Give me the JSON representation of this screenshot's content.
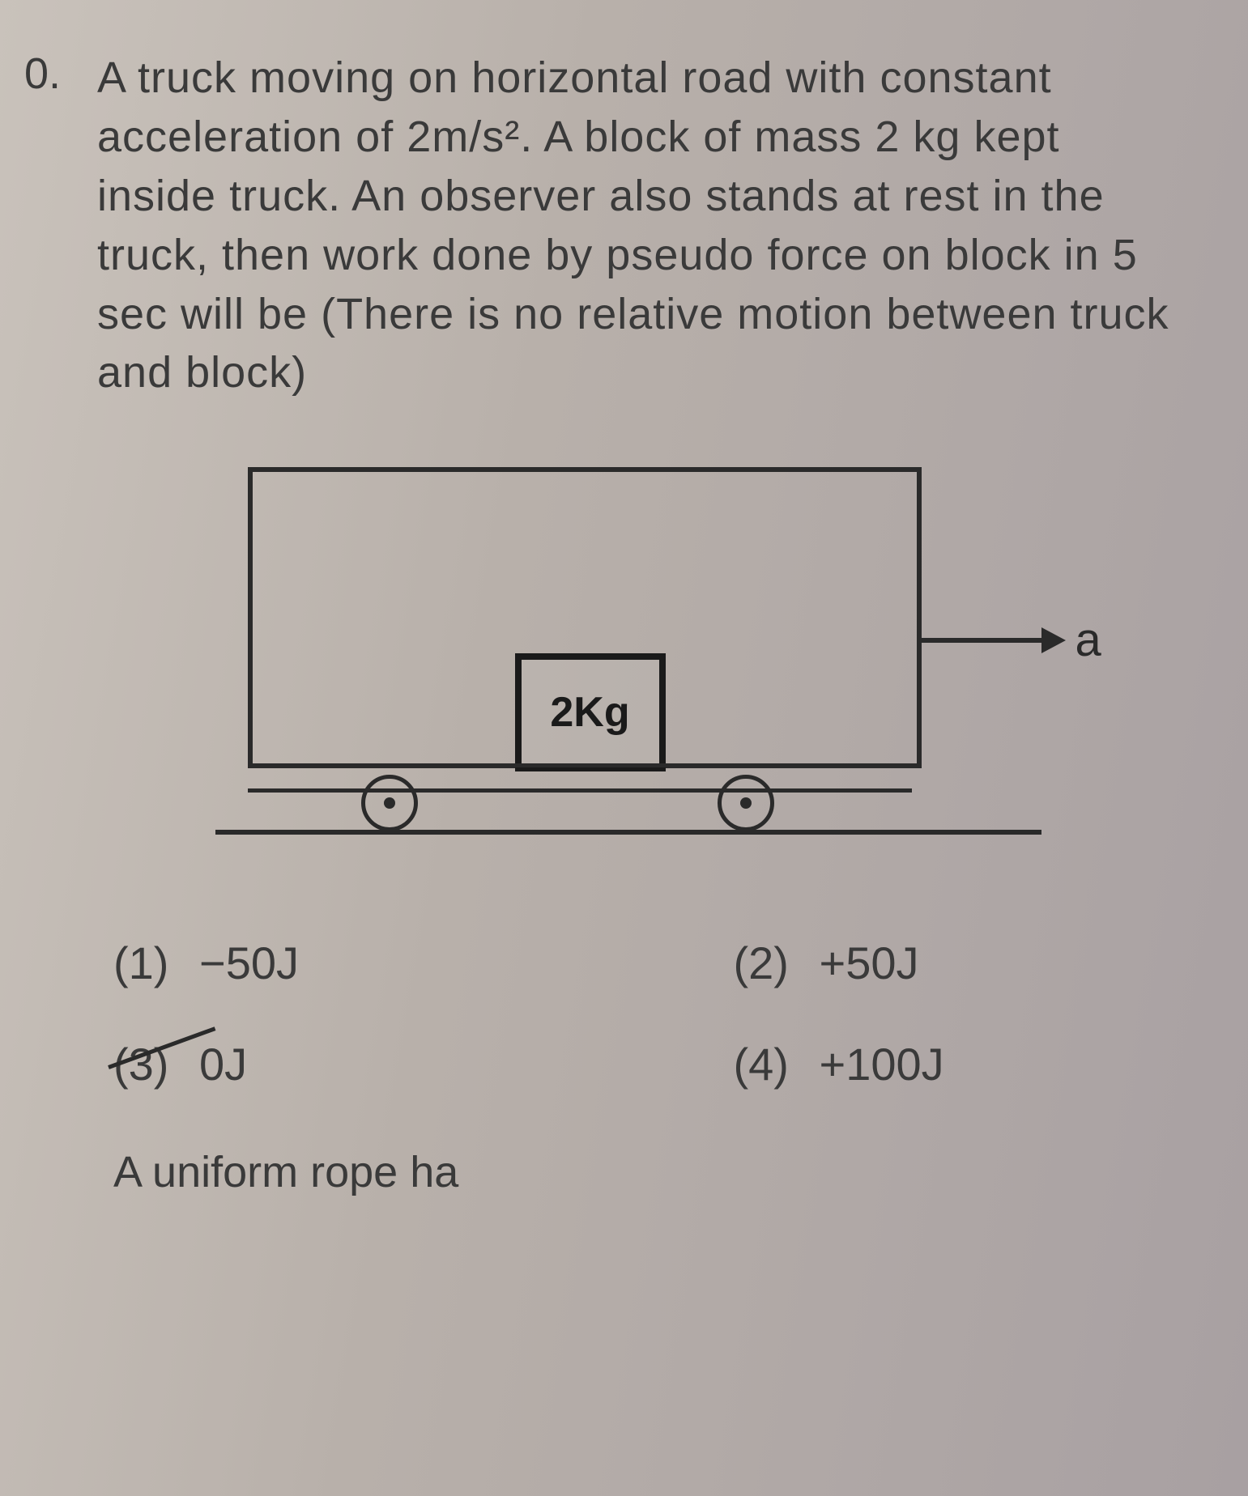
{
  "question_number": "0.",
  "question_text": "A truck moving on horizontal road with constant acceleration of 2m/s². A block of mass 2 kg kept inside truck. An observer also stands at rest in the truck, then work done by pseudo force on block in 5 sec will be (There is no relative motion between truck and block)",
  "figure": {
    "block_label": "2Kg",
    "arrow_label": "a",
    "colors": {
      "stroke": "#2a2a2a",
      "background": "#b8b0aa"
    },
    "sizes": {
      "truck_w": 820,
      "truck_h": 360,
      "block_w": 170,
      "block_h": 130,
      "wheel_d": 60
    }
  },
  "options": [
    {
      "num": "(1)",
      "text": "−50J",
      "struck": false
    },
    {
      "num": "(2)",
      "text": "+50J",
      "struck": false
    },
    {
      "num": "(3)",
      "text": "0J",
      "struck": true
    },
    {
      "num": "(4)",
      "text": "+100J",
      "struck": false
    }
  ],
  "footer": "A uniform rope ha"
}
